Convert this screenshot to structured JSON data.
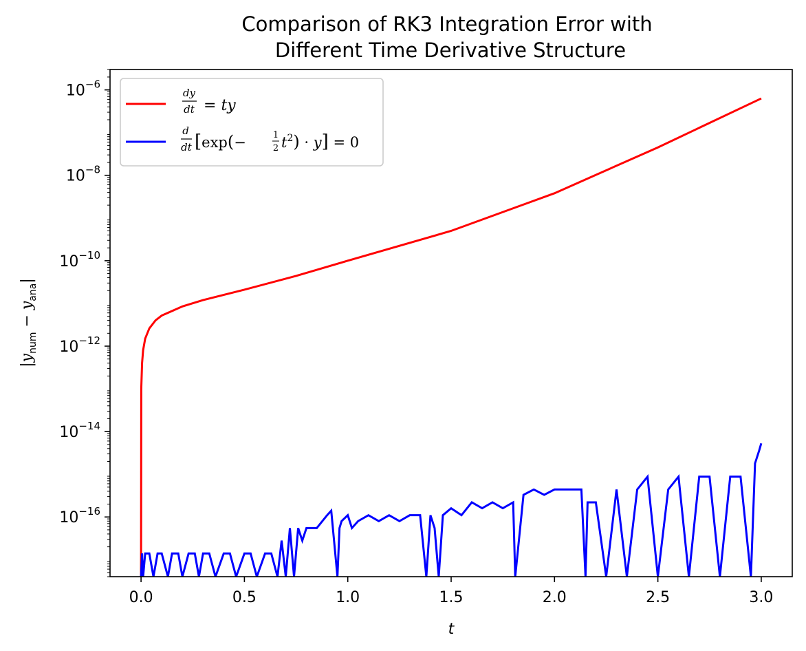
{
  "chart_data": {
    "type": "line",
    "title": [
      "Comparison of RK3 Integration Error with",
      "Different Time Derivative Structure"
    ],
    "xlabel": "t",
    "ylabel": {
      "base": "|y",
      "sub1": "num",
      "mid": " − y",
      "sub2": "ana",
      "end": "|"
    },
    "xlim": [
      -0.15,
      3.15
    ],
    "ylim": [
      4e-18,
      3e-06
    ],
    "yscale": "log",
    "grid": false,
    "legend_position": "top-left",
    "x_ticks": [
      "0.0",
      "0.5",
      "1.0",
      "1.5",
      "2.0",
      "2.5",
      "3.0"
    ],
    "x_tick_values": [
      0,
      0.5,
      1.0,
      1.5,
      2.0,
      2.5,
      3.0
    ],
    "y_ticks": [
      {
        "base": "10",
        "exp": "−6",
        "value": 1e-06
      },
      {
        "base": "10",
        "exp": "−8",
        "value": 1e-08
      },
      {
        "base": "10",
        "exp": "−10",
        "value": 1e-10
      },
      {
        "base": "10",
        "exp": "−12",
        "value": 1e-12
      },
      {
        "base": "10",
        "exp": "−14",
        "value": 1e-14
      },
      {
        "base": "10",
        "exp": "−16",
        "value": 1e-16
      }
    ],
    "series": [
      {
        "name": "dy/dt = ty",
        "color": "#ff0000",
        "x": [
          0.0,
          0.001,
          0.005,
          0.01,
          0.02,
          0.04,
          0.07,
          0.1,
          0.2,
          0.3,
          0.5,
          0.75,
          1.0,
          1.5,
          2.0,
          2.5,
          3.0
        ],
        "y": [
          4e-18,
          1e-13,
          4e-13,
          8e-13,
          1.5e-12,
          2.6e-12,
          4e-12,
          5.2e-12,
          8.5e-12,
          1.2e-11,
          2.1e-11,
          4.4e-11,
          1e-10,
          5e-10,
          3.8e-09,
          4.5e-08,
          6.3e-07
        ]
      },
      {
        "name": "d/dt[exp(−½t²)·y] = 0",
        "color": "#0000ff",
        "x": [
          0.0,
          0.005,
          0.01,
          0.02,
          0.04,
          0.06,
          0.08,
          0.1,
          0.13,
          0.15,
          0.18,
          0.2,
          0.23,
          0.26,
          0.28,
          0.3,
          0.33,
          0.36,
          0.4,
          0.43,
          0.46,
          0.5,
          0.53,
          0.56,
          0.6,
          0.63,
          0.66,
          0.68,
          0.7,
          0.72,
          0.74,
          0.76,
          0.78,
          0.8,
          0.85,
          0.9,
          0.92,
          0.95,
          0.96,
          0.97,
          1.0,
          1.02,
          1.05,
          1.1,
          1.15,
          1.2,
          1.25,
          1.3,
          1.35,
          1.38,
          1.4,
          1.42,
          1.44,
          1.46,
          1.5,
          1.55,
          1.6,
          1.65,
          1.7,
          1.75,
          1.8,
          1.81,
          1.85,
          1.9,
          1.95,
          2.0,
          2.05,
          2.1,
          2.13,
          2.15,
          2.16,
          2.2,
          2.25,
          2.3,
          2.35,
          2.4,
          2.45,
          2.5,
          2.55,
          2.6,
          2.65,
          2.7,
          2.75,
          2.8,
          2.85,
          2.9,
          2.95,
          2.97,
          2.99,
          3.0
        ],
        "y": [
          4e-18,
          1.4e-17,
          4e-18,
          1.4e-17,
          1.4e-17,
          4e-18,
          1.4e-17,
          1.4e-17,
          4e-18,
          1.4e-17,
          1.4e-17,
          4e-18,
          1.4e-17,
          1.4e-17,
          4e-18,
          1.4e-17,
          1.4e-17,
          4e-18,
          1.4e-17,
          1.4e-17,
          4e-18,
          1.4e-17,
          1.4e-17,
          4e-18,
          1.4e-17,
          1.4e-17,
          4e-18,
          2.8e-17,
          4e-18,
          5.5e-17,
          4e-18,
          5.5e-17,
          2.8e-17,
          5.5e-17,
          5.5e-17,
          1.1e-16,
          1.4e-16,
          4e-18,
          5.5e-17,
          8e-17,
          1.1e-16,
          5.5e-17,
          8e-17,
          1.1e-16,
          8e-17,
          1.1e-16,
          8e-17,
          1.1e-16,
          1.1e-16,
          4e-18,
          1.1e-16,
          5.5e-17,
          4e-18,
          1.1e-16,
          1.6e-16,
          1.1e-16,
          2.2e-16,
          1.6e-16,
          2.2e-16,
          1.6e-16,
          2.2e-16,
          4e-18,
          3.3e-16,
          4.4e-16,
          3.3e-16,
          4.4e-16,
          4.4e-16,
          4.4e-16,
          4.4e-16,
          4e-18,
          2.2e-16,
          2.2e-16,
          4e-18,
          4.4e-16,
          4e-18,
          4.4e-16,
          8.8e-16,
          4e-18,
          4.4e-16,
          8.8e-16,
          4e-18,
          8.8e-16,
          8.8e-16,
          4e-18,
          8.8e-16,
          8.8e-16,
          4e-18,
          1.8e-15,
          3.6e-15,
          5.3e-15
        ]
      }
    ]
  }
}
